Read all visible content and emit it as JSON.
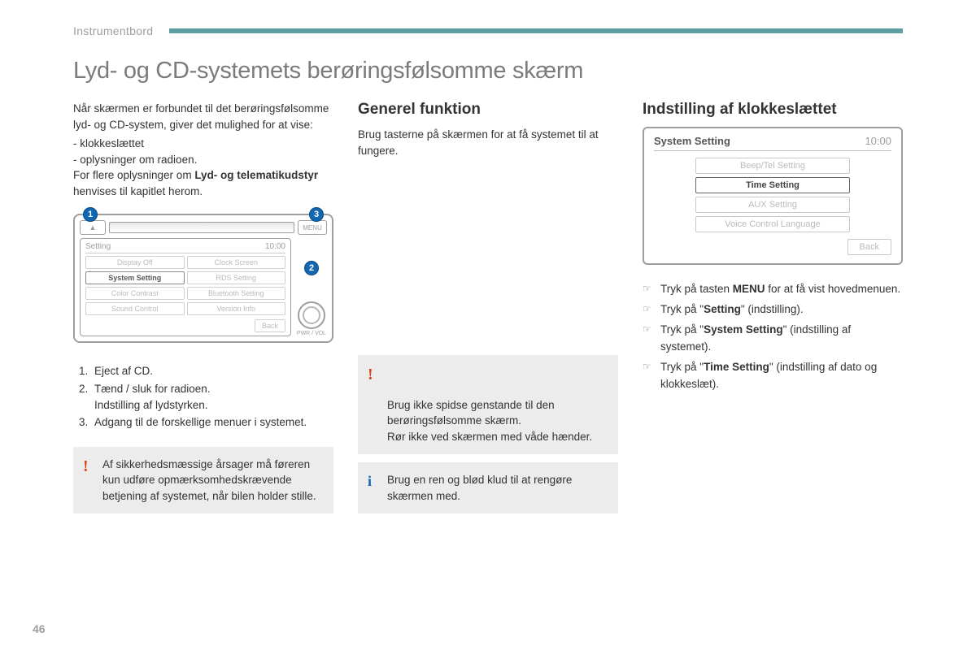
{
  "header": {
    "section_label": "Instrumentbord",
    "bar_color": "#5f9ea0"
  },
  "title": "Lyd- og CD-systemets berøringsfølsomme skærm",
  "col1": {
    "intro1": "Når skærmen er forbundet til det berøringsfølsomme lyd- og CD-system, giver det mulighed for at vise:",
    "bullets": [
      "klokkeslættet",
      "oplysninger om radioen."
    ],
    "intro2_pre": "For flere oplysninger om ",
    "intro2_bold": "Lyd- og telematikudstyr",
    "intro2_post": " henvises til kapitlet herom.",
    "device": {
      "callouts": {
        "c1": "1",
        "c2": "2",
        "c3": "3"
      },
      "eject_glyph": "▲",
      "menu_label": "MENU",
      "screen_title": "Setting",
      "screen_time": "10:00",
      "cells": [
        {
          "label": "Display Off",
          "sel": false
        },
        {
          "label": "Clock Screen",
          "sel": false
        },
        {
          "label": "System Setting",
          "sel": true
        },
        {
          "label": "RDS Setting",
          "sel": false
        },
        {
          "label": "Color Contrast",
          "sel": false
        },
        {
          "label": "Bluetooth Setting",
          "sel": false
        },
        {
          "label": "Sound Control",
          "sel": false
        },
        {
          "label": "Version Info",
          "sel": false
        }
      ],
      "back_label": "Back",
      "knob_label": "PWR / VOL"
    },
    "list": [
      {
        "n": "1.",
        "text": "Eject af CD."
      },
      {
        "n": "2.",
        "text": "Tænd / sluk for radioen.",
        "sub": "Indstilling af lydstyrken."
      },
      {
        "n": "3.",
        "text": "Adgang til de forskellige menuer i systemet."
      }
    ],
    "safety_note": "Af sikkerhedsmæssige årsager må føreren kun udføre opmærksomhedskrævende betjening af systemet, når bilen holder stille."
  },
  "col2": {
    "heading": "Generel funktion",
    "text": "Brug tasterne på skærmen for at få systemet til at fungere.",
    "warn_note": "Brug ikke spidse genstande til den berøringsfølsomme skærm.\nRør ikke ved skærmen med våde hænder.",
    "info_note": "Brug en ren og blød klud til at rengøre skærmen med."
  },
  "col3": {
    "heading": "Indstilling af klokkeslættet",
    "panel": {
      "title": "System Setting",
      "time": "10:00",
      "items": [
        {
          "label": "Beep/Tel Setting",
          "sel": false
        },
        {
          "label": "Time Setting",
          "sel": true
        },
        {
          "label": "AUX Setting",
          "sel": false
        },
        {
          "label": "Voice Control Language",
          "sel": false
        }
      ],
      "back_label": "Back"
    },
    "steps": [
      {
        "pre": "Tryk på tasten ",
        "bold": "MENU",
        "post": " for at få vist hovedmenuen."
      },
      {
        "pre": "Tryk på \"",
        "bold": "Setting",
        "post": "\" (indstilling)."
      },
      {
        "pre": "Tryk på \"",
        "bold": "System Setting",
        "post": "\" (indstilling af systemet)."
      },
      {
        "pre": "Tryk på \"",
        "bold": "Time Setting",
        "post": "\" (indstilling af dato og klokkeslæt)."
      }
    ]
  },
  "page_number": "46",
  "icons": {
    "warn": "!",
    "info": "i"
  }
}
